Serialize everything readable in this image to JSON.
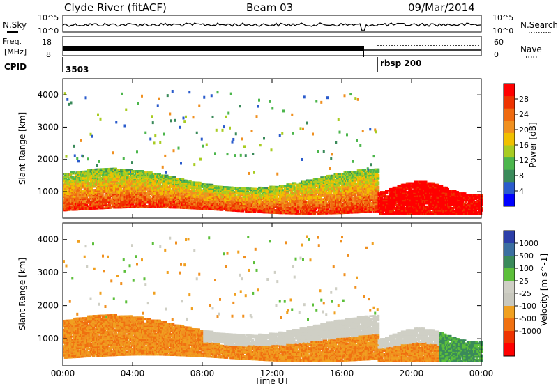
{
  "header": {
    "station": "Clyde River (fitACF)",
    "beam": "Beam 03",
    "date": "09/Mar/2014"
  },
  "strip_labels": {
    "nsky": "N.Sky",
    "nsky_ticks": [
      "10^5",
      "10^0"
    ],
    "freq": "Freq.",
    "freq_unit": "[MHz]",
    "freq_ticks": [
      "18",
      "8"
    ],
    "cpid": "CPID",
    "nsearch": "N.Search",
    "nsearch_ticks": [
      "10^5",
      "10^0"
    ],
    "nave": "Nave",
    "nave_ticks": [
      "60",
      "0"
    ]
  },
  "cpid_segments": [
    {
      "label": "3503",
      "start_hour": 0
    },
    {
      "label": "rbsp 200",
      "start_hour": 18
    }
  ],
  "chart_data": [
    {
      "type": "heatmap",
      "parameter": "Power",
      "ylabel": "Slant Range [km]",
      "xlabel": "Time UT",
      "x_ticks": [
        "00:00",
        "04:00",
        "08:00",
        "12:00",
        "16:00",
        "20:00",
        "00:00"
      ],
      "xlim_hours": [
        0,
        24
      ],
      "ylim": [
        180,
        4500
      ],
      "y_ticks": [
        1000,
        2000,
        3000,
        4000
      ],
      "colorbar": {
        "label": "Power [dB]",
        "ticks": [
          "4",
          "8",
          "12",
          "16",
          "20",
          "24",
          "28"
        ],
        "colors": [
          "#0000ff",
          "#2a5bcc",
          "#3a8a5a",
          "#4cb64c",
          "#a8cc22",
          "#f0c000",
          "#f09020",
          "#ef6a10",
          "#ee3300",
          "#ff0000"
        ]
      }
    },
    {
      "type": "heatmap",
      "parameter": "Velocity",
      "ylabel": "Slant Range [km]",
      "xlabel": "Time UT",
      "x_ticks": [
        "00:00",
        "04:00",
        "08:00",
        "12:00",
        "16:00",
        "20:00",
        "00:00"
      ],
      "xlim_hours": [
        0,
        24
      ],
      "ylim": [
        180,
        4500
      ],
      "y_ticks": [
        1000,
        2000,
        3000,
        4000
      ],
      "colorbar": {
        "label": "Velocity [m s^-1]",
        "ticks": [
          "1000",
          "500",
          "100",
          "25",
          "-25",
          "-100",
          "-500",
          "-1000"
        ],
        "colors": [
          "#2c3ea8",
          "#3b6fa0",
          "#3a8a5a",
          "#5cbf3a",
          "#cfcfc5",
          "#c8c8be",
          "#f0a020",
          "#f07010",
          "#ee3300",
          "#ff0000"
        ]
      }
    }
  ]
}
